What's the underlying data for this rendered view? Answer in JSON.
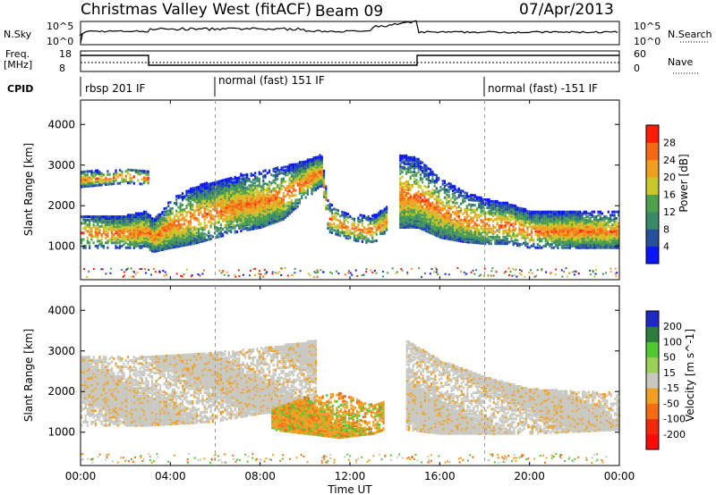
{
  "header": {
    "title": "Christmas Valley West (fitACF)",
    "beam": "Beam 09",
    "date": "07/Apr/2013"
  },
  "noise_panel": {
    "left_label": "N.Sky",
    "right_label": "N.Search",
    "left_ticks": [
      "10^5",
      "10^0"
    ],
    "right_ticks": [
      "10^5",
      "10^0"
    ]
  },
  "freq_panel": {
    "left_label_line1": "Freq.",
    "left_label_line2": "[MHz]",
    "right_label": "Nave",
    "left_ticks": [
      "18",
      "8"
    ],
    "right_ticks": [
      "60",
      "0"
    ]
  },
  "cpid": {
    "label": "CPID",
    "segments": [
      {
        "start_hour": 0,
        "text": "rbsp 201 IF"
      },
      {
        "start_hour": 6,
        "text": "normal (fast) 151 IF"
      },
      {
        "start_hour": 18,
        "text": "normal (fast) -151 IF"
      }
    ]
  },
  "colors": {
    "power": [
      "#0a14ff",
      "#27509a",
      "#3a8a6a",
      "#4fa04a",
      "#c8c82a",
      "#f0a020",
      "#f46a14",
      "#ff1e0a"
    ],
    "velocity": [
      "#1e28c8",
      "#2e7d3c",
      "#50c832",
      "#9ad05a",
      "#c8c8c0",
      "#f0a020",
      "#f56c14",
      "#f02a0a",
      "#ff0a0a"
    ]
  },
  "chart_data": [
    {
      "type": "heatmap",
      "title": "Power",
      "xlabel": "Time UT",
      "ylabel": "Slant Range [km]",
      "xlim": [
        0,
        24
      ],
      "ylim": [
        180,
        4600
      ],
      "yticks": [
        1000,
        2000,
        3000,
        4000
      ],
      "colorbar": {
        "label": "Power [dB]",
        "ticks": [
          "4",
          "8",
          "12",
          "16",
          "20",
          "24",
          "28"
        ]
      },
      "bands": [
        {
          "name": "main-echo",
          "x": [
            0,
            1,
            2,
            2.9,
            3.2,
            4,
            5,
            6,
            7,
            8,
            9,
            10,
            10.7,
            11,
            12,
            13,
            13.6
          ],
          "y_low": [
            1000,
            1000,
            1000,
            1000,
            900,
            1000,
            1100,
            1250,
            1400,
            1500,
            1700,
            2200,
            2550,
            1400,
            1200,
            1100,
            1400
          ],
          "y_high": [
            1800,
            1800,
            1800,
            1900,
            1700,
            2200,
            2500,
            2650,
            2800,
            2900,
            3000,
            3150,
            3300,
            2100,
            1800,
            1800,
            2000
          ],
          "value": 28
        },
        {
          "name": "upper-echo",
          "x": [
            0,
            1,
            2,
            3
          ],
          "y_low": [
            2500,
            2550,
            2600,
            2550
          ],
          "y_high": [
            2900,
            2900,
            2950,
            2900
          ],
          "value": 28
        },
        {
          "name": "evening-echo",
          "x": [
            14.2,
            15,
            16,
            17,
            18,
            19,
            20,
            22,
            24
          ],
          "y_low": [
            1500,
            1500,
            1250,
            1150,
            1100,
            1100,
            1000,
            1000,
            1000
          ],
          "y_high": [
            3300,
            3200,
            2700,
            2400,
            2200,
            2100,
            1900,
            1900,
            1900
          ],
          "value": 28
        }
      ]
    },
    {
      "type": "heatmap",
      "title": "Velocity",
      "xlabel": "Time UT",
      "ylabel": "Slant Range [km]",
      "xlim": [
        0,
        24
      ],
      "ylim": [
        180,
        4600
      ],
      "xticks": [
        "00:00",
        "04:00",
        "08:00",
        "12:00",
        "16:00",
        "20:00",
        "00:00"
      ],
      "yticks": [
        1000,
        2000,
        3000,
        4000
      ],
      "colorbar": {
        "label": "Velocity [m s^-1]",
        "ticks": [
          "200",
          "100",
          "50",
          "15",
          "-15",
          "-50",
          "-100",
          "-200"
        ]
      },
      "bands": [
        {
          "name": "ground-scatter",
          "x": [
            0,
            3,
            6,
            8,
            10.5
          ],
          "y_low": [
            1200,
            1200,
            1300,
            1500,
            1600
          ],
          "y_high": [
            2900,
            2900,
            3000,
            3100,
            3300
          ],
          "value": 0
        },
        {
          "name": "morning-flow",
          "x": [
            8.5,
            10,
            11.5,
            13,
            13.5
          ],
          "y_low": [
            1100,
            1000,
            900,
            1000,
            1100
          ],
          "y_high": [
            1600,
            1900,
            2000,
            1700,
            1800
          ],
          "value": -60
        },
        {
          "name": "evening-ground-scatter",
          "x": [
            14.5,
            16,
            18,
            20,
            24
          ],
          "y_low": [
            1100,
            1000,
            1000,
            1000,
            1100
          ],
          "y_high": [
            3300,
            2800,
            2400,
            2100,
            2000
          ],
          "value": 0
        }
      ]
    }
  ]
}
